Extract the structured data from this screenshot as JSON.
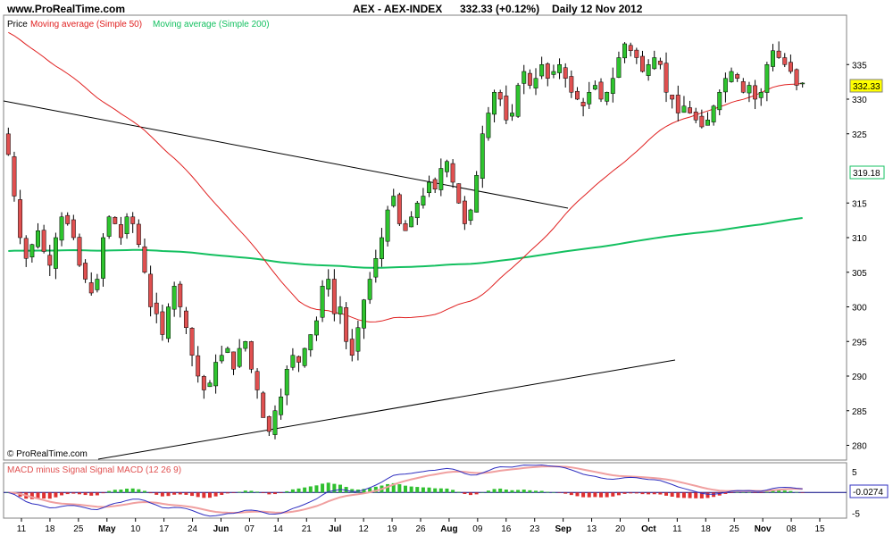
{
  "header": {
    "site": "www.ProRealTime.com",
    "instrument": "AEX - AEX-INDEX",
    "last": "332.33 (+0.12%)",
    "period": "Daily  12 Nov 2012"
  },
  "legend": {
    "price": "Price",
    "ma50": "Moving average (Simple 50)",
    "ma200": "Moving average (Simple 200)"
  },
  "watermark": "© ProRealTime.com",
  "colors": {
    "up": "#2ec42e",
    "down": "#e05050",
    "ma50": "#e02020",
    "ma200": "#14c060",
    "macd": "#3030c0",
    "signal_fill": "#f0a0a0",
    "hist_pos": "#30c030",
    "hist_neg": "#e03030"
  },
  "chart_data": [
    {
      "type": "candlestick",
      "title": "AEX - AEX-INDEX",
      "ylim": [
        278,
        342
      ],
      "y_ticks": [
        280,
        285,
        290,
        295,
        300,
        305,
        310,
        315,
        320,
        325,
        330,
        335
      ],
      "y_tick_labels": [
        "280",
        "285",
        "290",
        "295",
        "300",
        "305",
        "310",
        "315",
        "",
        "325",
        "330",
        "335"
      ],
      "x_tick_labels": [
        "11",
        "18",
        "25",
        "May",
        "10",
        "17",
        "24",
        "Jun",
        "07",
        "14",
        "21",
        "Jul",
        "12",
        "19",
        "26",
        "Aug",
        "09",
        "16",
        "23",
        "Sep",
        "13",
        "20",
        "Oct",
        "11",
        "18",
        "25",
        "Nov",
        "08",
        "15"
      ],
      "x_tick_bold": [
        false,
        false,
        false,
        true,
        false,
        false,
        false,
        true,
        false,
        false,
        false,
        true,
        false,
        false,
        false,
        true,
        false,
        false,
        false,
        true,
        false,
        false,
        true,
        false,
        false,
        false,
        true,
        false,
        false
      ],
      "last_price_label": "332.33",
      "ma200_label": "319.18",
      "close": [
        322,
        316,
        310,
        307,
        309,
        311,
        308,
        306,
        310,
        313,
        312,
        310,
        306,
        304,
        302,
        304,
        310,
        313,
        312,
        310,
        313,
        312,
        309,
        305,
        300,
        299,
        296,
        300,
        303,
        300,
        297,
        293,
        290,
        288,
        289,
        292,
        293,
        294,
        291,
        294,
        295,
        291,
        288,
        284,
        282,
        285,
        287,
        291,
        293,
        292,
        294,
        296,
        298,
        303,
        304,
        299,
        300,
        295,
        293,
        297,
        301,
        304,
        307,
        310,
        314,
        316,
        312,
        311,
        313,
        315,
        316,
        318,
        317,
        320,
        321,
        318,
        315,
        312,
        314,
        319,
        325,
        328,
        331,
        330,
        327,
        328,
        332,
        334,
        332,
        333,
        335,
        333,
        334,
        335,
        333,
        331,
        330,
        329,
        331,
        332,
        330,
        331,
        333,
        336,
        338,
        337,
        336,
        334,
        335,
        336,
        335,
        331,
        330,
        328,
        329,
        328,
        327,
        326,
        327,
        329,
        331,
        333,
        334,
        333,
        331,
        332,
        330,
        331,
        335,
        337,
        336,
        335,
        334,
        332,
        332.33
      ]
    },
    {
      "type": "histogram+line",
      "title": "MACD minus Signal Signal MACD (12 26 9)",
      "ylim": [
        -6,
        7
      ],
      "y_ticks": [
        5,
        -5
      ],
      "last_value_label": "-0.0274",
      "series": [
        {
          "name": "MACD minus Signal"
        },
        {
          "name": "Signal"
        },
        {
          "name": "MACD (12 26 9)"
        }
      ]
    }
  ]
}
